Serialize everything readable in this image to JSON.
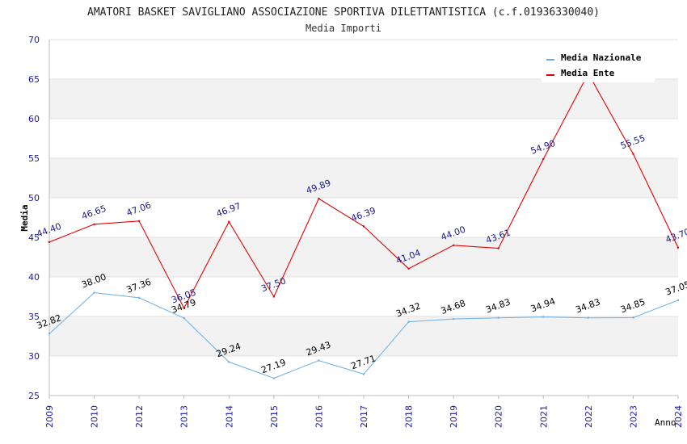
{
  "chart_data": {
    "type": "line",
    "title": "AMATORI BASKET SAVIGLIANO ASSOCIAZIONE SPORTIVA DILETTANTISTICA (c.f.01936330040)",
    "subtitle": "Media Importi",
    "xlabel": "Anno",
    "ylabel": "Media",
    "ylim": [
      25,
      70
    ],
    "yticks": [
      "25",
      "30",
      "35",
      "40",
      "45",
      "50",
      "55",
      "60",
      "65",
      "70"
    ],
    "categories": [
      "2009",
      "2010",
      "2012",
      "2013",
      "2014",
      "2015",
      "2016",
      "2017",
      "2018",
      "2019",
      "2020",
      "2021",
      "2022",
      "2023",
      "2024"
    ],
    "series": [
      {
        "name": "Media Nazionale",
        "color": "#6aaee6",
        "label_color": "#000000",
        "values": [
          32.82,
          38.0,
          37.36,
          34.79,
          29.24,
          27.19,
          29.43,
          27.71,
          34.32,
          34.68,
          34.83,
          34.94,
          34.83,
          34.85,
          37.05
        ],
        "labels": [
          "32.82",
          "38.00",
          "37.36",
          "34.79",
          "29.24",
          "27.19",
          "29.43",
          "27.71",
          "34.32",
          "34.68",
          "34.83",
          "34.94",
          "34.83",
          "34.85",
          "37.05"
        ]
      },
      {
        "name": "Media Ente",
        "color": "#e00000",
        "label_color": "#1a1a8c",
        "values": [
          44.4,
          46.65,
          47.06,
          36.05,
          46.97,
          37.5,
          49.89,
          46.39,
          41.04,
          44.0,
          43.61,
          54.9,
          65.7,
          55.55,
          43.7
        ],
        "labels": [
          "44.40",
          "46.65",
          "47.06",
          "36.05",
          "46.97",
          "37.50",
          "49.89",
          "46.39",
          "41.04",
          "44.00",
          "43.61",
          "54.90",
          "",
          "55.55",
          "43.70"
        ]
      }
    ],
    "grid": true,
    "legend": "top-right"
  }
}
